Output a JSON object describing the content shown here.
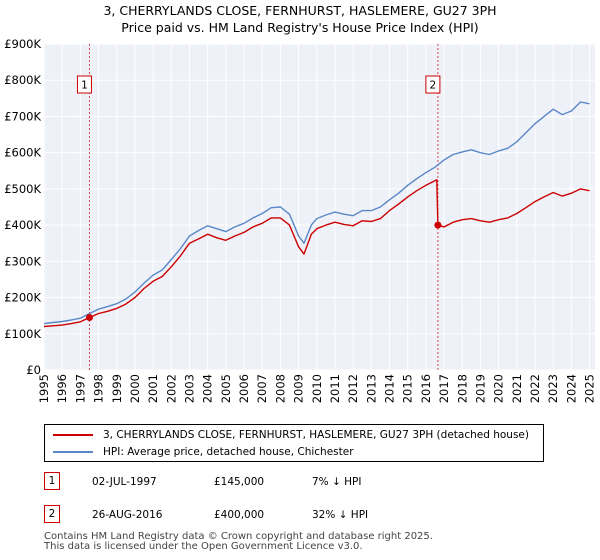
{
  "title": "3, CHERRYLANDS CLOSE, FERNHURST, HASLEMERE, GU27 3PH",
  "subtitle": "Price paid vs. HM Land Registry's House Price Index (HPI)",
  "chart_data": {
    "type": "line",
    "title": "3, CHERRYLANDS CLOSE, FERNHURST, HASLEMERE, GU27 3PH",
    "subtitle": "Price paid vs. HM Land Registry's House Price Index (HPI)",
    "xlim": [
      1995,
      2025.3
    ],
    "ylim": [
      0,
      900000
    ],
    "y_ticks": [
      0,
      100000,
      200000,
      300000,
      400000,
      500000,
      600000,
      700000,
      800000,
      900000
    ],
    "y_tick_labels": [
      "£0",
      "£100K",
      "£200K",
      "£300K",
      "£400K",
      "£500K",
      "£600K",
      "£700K",
      "£800K",
      "£900K"
    ],
    "x_ticks": [
      1995,
      1996,
      1997,
      1998,
      1999,
      2000,
      2001,
      2002,
      2003,
      2004,
      2005,
      2006,
      2007,
      2008,
      2009,
      2010,
      2011,
      2012,
      2013,
      2014,
      2015,
      2016,
      2017,
      2018,
      2019,
      2020,
      2021,
      2022,
      2023,
      2024,
      2025
    ],
    "grid": true,
    "series": [
      {
        "name": "3, CHERRYLANDS CLOSE, FERNHURST, HASLEMERE, GU27 3PH (detached house)",
        "color": "#cc0000",
        "x": [
          1995.0,
          1995.5,
          1996.0,
          1996.5,
          1997.0,
          1997.5,
          1998.0,
          1998.5,
          1999.0,
          1999.5,
          2000.0,
          2000.5,
          2001.0,
          2001.5,
          2002.0,
          2002.5,
          2003.0,
          2003.5,
          2004.0,
          2004.5,
          2005.0,
          2005.5,
          2006.0,
          2006.5,
          2007.0,
          2007.5,
          2008.0,
          2008.5,
          2009.0,
          2009.3,
          2009.7,
          2010.0,
          2010.5,
          2011.0,
          2011.5,
          2012.0,
          2012.5,
          2013.0,
          2013.5,
          2014.0,
          2014.5,
          2015.0,
          2015.5,
          2016.0,
          2016.4,
          2016.6,
          2016.66,
          2017.0,
          2017.5,
          2018.0,
          2018.5,
          2019.0,
          2019.5,
          2020.0,
          2020.5,
          2021.0,
          2021.5,
          2022.0,
          2022.5,
          2023.0,
          2023.5,
          2024.0,
          2024.5,
          2025.0
        ],
        "values": [
          120000,
          122000,
          124000,
          128000,
          133000,
          145000,
          156000,
          162000,
          170000,
          182000,
          200000,
          225000,
          245000,
          258000,
          285000,
          315000,
          350000,
          362000,
          375000,
          365000,
          358000,
          370000,
          380000,
          395000,
          405000,
          420000,
          420000,
          400000,
          340000,
          320000,
          375000,
          390000,
          400000,
          408000,
          402000,
          398000,
          412000,
          410000,
          418000,
          440000,
          458000,
          478000,
          495000,
          510000,
          520000,
          525000,
          400000,
          395000,
          408000,
          415000,
          418000,
          412000,
          408000,
          415000,
          420000,
          432000,
          448000,
          465000,
          478000,
          490000,
          480000,
          488000,
          500000,
          495000
        ]
      },
      {
        "name": "HPI: Average price, detached house, Chichester",
        "color": "#5a87c8",
        "x": [
          1995.0,
          1995.5,
          1996.0,
          1996.5,
          1997.0,
          1997.5,
          1998.0,
          1998.5,
          1999.0,
          1999.5,
          2000.0,
          2000.5,
          2001.0,
          2001.5,
          2002.0,
          2002.5,
          2003.0,
          2003.5,
          2004.0,
          2004.5,
          2005.0,
          2005.5,
          2006.0,
          2006.5,
          2007.0,
          2007.5,
          2008.0,
          2008.5,
          2009.0,
          2009.3,
          2009.7,
          2010.0,
          2010.5,
          2011.0,
          2011.5,
          2012.0,
          2012.5,
          2013.0,
          2013.5,
          2014.0,
          2014.5,
          2015.0,
          2015.5,
          2016.0,
          2016.5,
          2017.0,
          2017.5,
          2018.0,
          2018.5,
          2019.0,
          2019.5,
          2020.0,
          2020.5,
          2021.0,
          2021.5,
          2022.0,
          2022.5,
          2023.0,
          2023.5,
          2024.0,
          2024.5,
          2025.0
        ],
        "values": [
          128000,
          131000,
          134000,
          138000,
          143000,
          156000,
          168000,
          175000,
          183000,
          196000,
          215000,
          240000,
          262000,
          276000,
          305000,
          335000,
          370000,
          385000,
          398000,
          390000,
          382000,
          395000,
          405000,
          420000,
          432000,
          448000,
          450000,
          430000,
          370000,
          350000,
          400000,
          418000,
          428000,
          436000,
          430000,
          426000,
          440000,
          440000,
          450000,
          470000,
          488000,
          510000,
          528000,
          545000,
          560000,
          580000,
          595000,
          602000,
          608000,
          600000,
          595000,
          605000,
          612000,
          630000,
          655000,
          680000,
          700000,
          720000,
          705000,
          715000,
          740000,
          735000
        ]
      }
    ],
    "sales": [
      {
        "id": "1",
        "x": 1997.5,
        "price": 145000
      },
      {
        "id": "2",
        "x": 2016.66,
        "price": 400000
      }
    ]
  },
  "legend": [
    {
      "label": "3, CHERRYLANDS CLOSE, FERNHURST, HASLEMERE, GU27 3PH (detached house)",
      "color": "#cc0000"
    },
    {
      "label": "HPI: Average price, detached house, Chichester",
      "color": "#5a87c8"
    }
  ],
  "transactions": [
    {
      "id": "1",
      "date": "02-JUL-1997",
      "price": "£145,000",
      "hpi": "7% ↓ HPI"
    },
    {
      "id": "2",
      "date": "26-AUG-2016",
      "price": "£400,000",
      "hpi": "32% ↓ HPI"
    }
  ],
  "footer": {
    "line1": "Contains HM Land Registry data © Crown copyright and database right 2025.",
    "line2": "This data is licensed under the Open Government Licence v3.0."
  }
}
